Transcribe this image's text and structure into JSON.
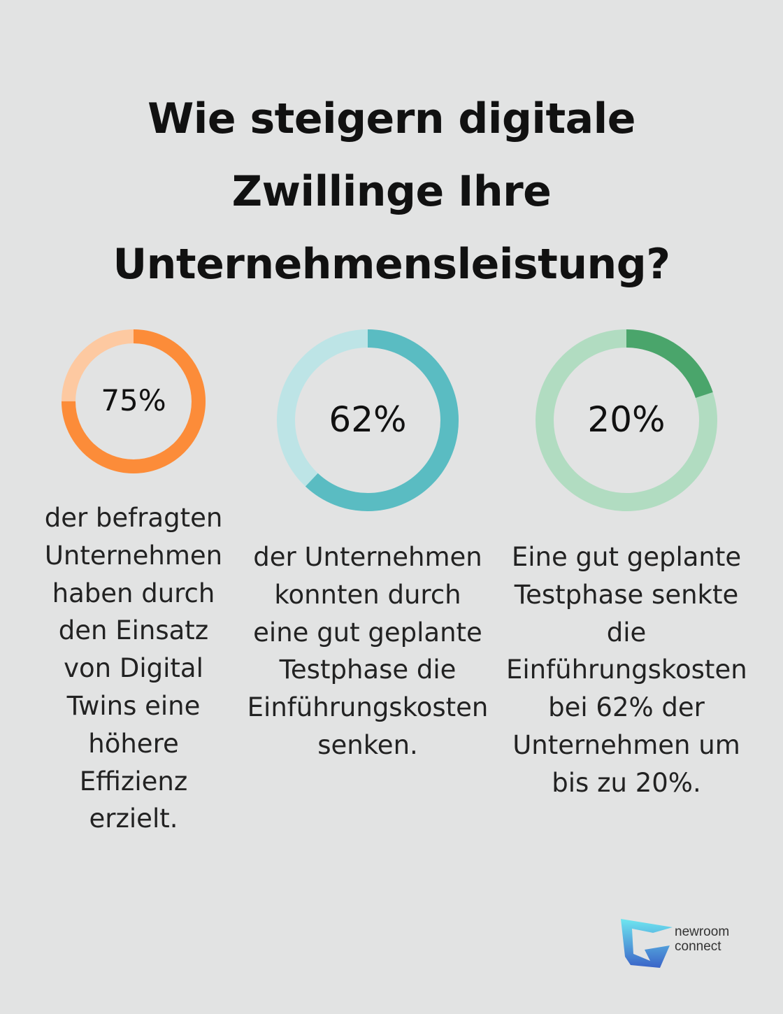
{
  "title": "Wie steigern digitale Zwillinge Ihre Unternehmensleistung?",
  "chart_data": [
    {
      "type": "donut",
      "value": 75,
      "label": "75%",
      "description": "der befragten Unternehmen haben durch den Einsatz von Digital Twins eine höhere Effizienz erzielt.",
      "colors": {
        "fill": "#fc8c39",
        "track": "#fdc9a1"
      }
    },
    {
      "type": "donut",
      "value": 62,
      "label": "62%",
      "description": "der Unternehmen konnten durch eine gut geplante Testphase die Einführungskosten senken.",
      "colors": {
        "fill": "#5abcc2",
        "track": "#bde4e6"
      }
    },
    {
      "type": "donut",
      "value": 20,
      "label": "20%",
      "description": "Eine gut geplante Testphase senkte die Einführungskosten bei 62% der Unternehmen um bis zu 20%.",
      "colors": {
        "fill": "#4aa56b",
        "track": "#b1dcc1"
      }
    }
  ],
  "logo": {
    "line1": "newroom",
    "line2": "connect"
  }
}
